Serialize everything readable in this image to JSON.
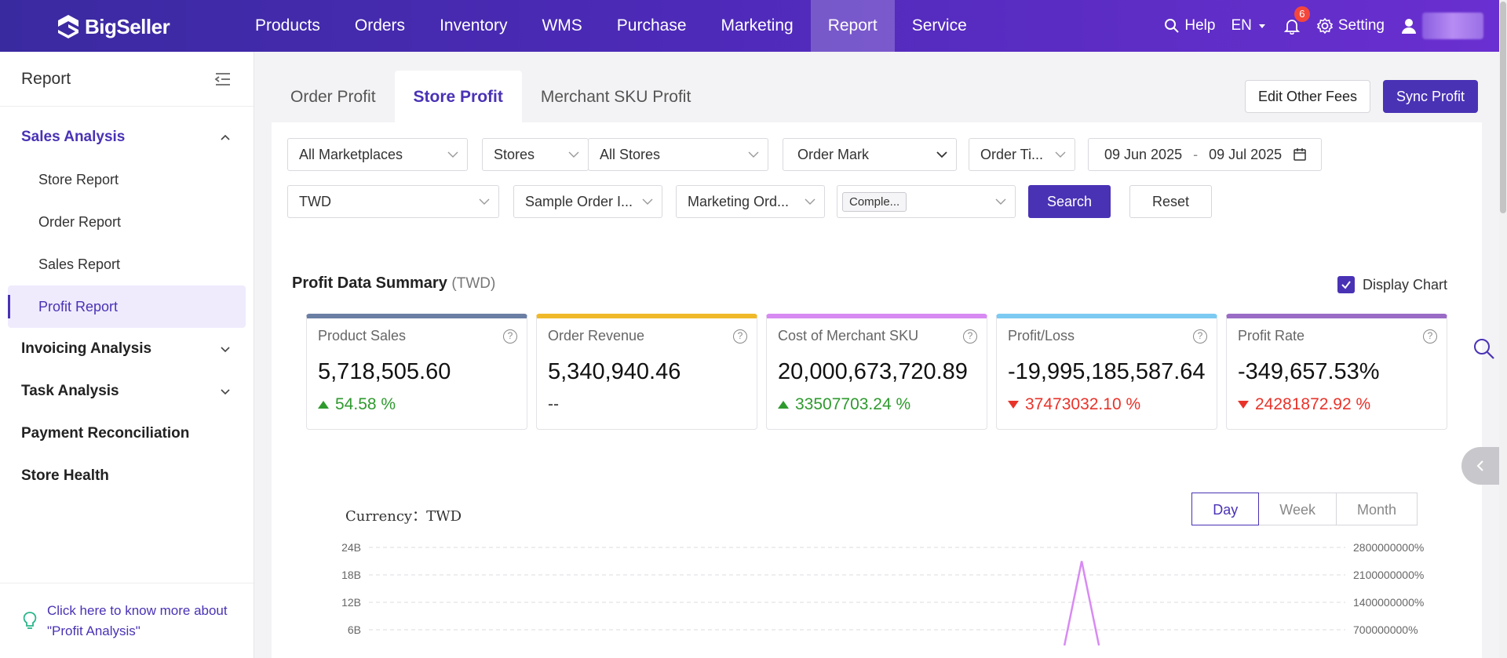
{
  "app": {
    "logo_text": "BigSeller"
  },
  "nav": {
    "items": [
      {
        "label": "Products"
      },
      {
        "label": "Orders"
      },
      {
        "label": "Inventory"
      },
      {
        "label": "WMS"
      },
      {
        "label": "Purchase"
      },
      {
        "label": "Marketing"
      },
      {
        "label": "Report",
        "active": true
      },
      {
        "label": "Service"
      }
    ]
  },
  "topright": {
    "help": "Help",
    "lang": "EN",
    "notif_count": "6",
    "setting": "Setting"
  },
  "sidebar": {
    "title": "Report",
    "groups": [
      {
        "label": "Sales Analysis",
        "open": true,
        "items": [
          {
            "label": "Store Report"
          },
          {
            "label": "Order Report"
          },
          {
            "label": "Sales Report"
          },
          {
            "label": "Profit Report",
            "active": true
          }
        ]
      },
      {
        "label": "Invoicing Analysis"
      },
      {
        "label": "Task Analysis"
      },
      {
        "label": "Payment Reconciliation"
      },
      {
        "label": "Store Health"
      }
    ],
    "help_line1": "Click here to know more about",
    "help_line2": "\"Profit Analysis\""
  },
  "tabs": [
    {
      "label": "Order Profit"
    },
    {
      "label": "Store Profit",
      "active": true
    },
    {
      "label": "Merchant SKU Profit"
    }
  ],
  "actions": {
    "edit_fees": "Edit Other Fees",
    "sync_profit": "Sync Profit"
  },
  "filters": {
    "marketplace": "All Marketplaces",
    "store_type": "Stores",
    "stores": "All Stores",
    "order_mark": "Order Mark",
    "order_time": "Order Ti...",
    "date_from": "09 Jun 2025",
    "date_sep": "-",
    "date_to": "09 Jul 2025",
    "currency": "TWD",
    "sample_order": "Sample Order I...",
    "marketing_order": "Marketing Ord...",
    "status_tag": "Comple...",
    "search": "Search",
    "reset": "Reset"
  },
  "summary": {
    "title": "Profit Data Summary",
    "currency_note": "(TWD)",
    "display_chart": "Display Chart",
    "cards": [
      {
        "label": "Product Sales",
        "value": "5,718,505.60",
        "change": "54.58 %",
        "direction": "up",
        "color": "#6a7fa3"
      },
      {
        "label": "Order Revenue",
        "value": "5,340,940.46",
        "change": "--",
        "direction": "none",
        "color": "#f0b92a"
      },
      {
        "label": "Cost of Merchant SKU",
        "value": "20,000,673,720.89",
        "change": "33507703.24 %",
        "direction": "up",
        "color": "#d88af3"
      },
      {
        "label": "Profit/Loss",
        "value": "-19,995,185,587.64",
        "change": "37473032.10 %",
        "direction": "down",
        "color": "#7ccaf2"
      },
      {
        "label": "Profit Rate",
        "value": "-349,657.53%",
        "change": "24281872.92 %",
        "direction": "down",
        "color": "#9a6cc6"
      }
    ]
  },
  "chart_controls": {
    "currency_label": "Currency：TWD",
    "periods": [
      {
        "label": "Day",
        "active": true
      },
      {
        "label": "Week"
      },
      {
        "label": "Month"
      }
    ]
  },
  "chart_data": {
    "type": "line",
    "ylabels_left": [
      "24B",
      "18B",
      "12B",
      "6B"
    ],
    "ylabels_right": [
      "2800000000%",
      "2100000000%",
      "1400000000%",
      "700000000%"
    ],
    "series": [
      {
        "color": "#d88af3",
        "peak_value_left_units": 20,
        "peak_x_fraction": 0.73
      }
    ]
  }
}
